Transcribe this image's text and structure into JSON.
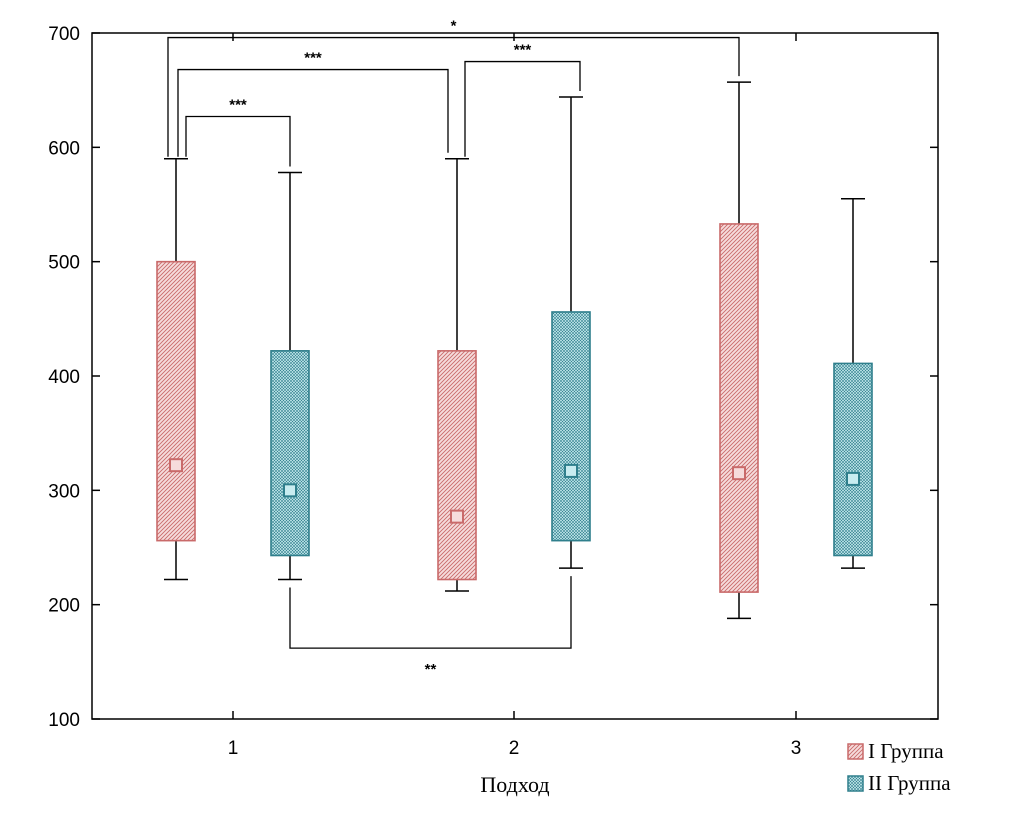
{
  "chart_data": {
    "type": "box",
    "title": "",
    "xlabel": "Подход",
    "ylabel": "",
    "ylim": [
      100,
      700
    ],
    "y_ticks": [
      100,
      200,
      300,
      400,
      500,
      600,
      700
    ],
    "categories": [
      "1",
      "2",
      "3"
    ],
    "series": [
      {
        "name": "I Группа",
        "key": "g1",
        "color": "#c96a6a",
        "fill": "#f6dcdc",
        "boxes": [
          {
            "category": "1",
            "min": 222,
            "q1": 256,
            "median": 322,
            "q3": 500,
            "max": 590
          },
          {
            "category": "2",
            "min": 212,
            "q1": 222,
            "median": 277,
            "q3": 422,
            "max": 590
          },
          {
            "category": "3",
            "min": 188,
            "q1": 211,
            "median": 315,
            "q3": 533,
            "max": 657
          }
        ]
      },
      {
        "name": "II Группа",
        "key": "g2",
        "color": "#2f7f8c",
        "fill": "#c8ecf0",
        "boxes": [
          {
            "category": "1",
            "min": 222,
            "q1": 243,
            "median": 300,
            "q3": 422,
            "max": 578
          },
          {
            "category": "2",
            "min": 232,
            "q1": 256,
            "median": 317,
            "q3": 456,
            "max": 644
          },
          {
            "category": "3",
            "min": 232,
            "q1": 243,
            "median": 310,
            "q3": 411,
            "max": 555
          }
        ]
      }
    ],
    "significance": [
      {
        "from": [
          0,
          0
        ],
        "to": [
          0,
          1
        ],
        "level": 627,
        "label": "***"
      },
      {
        "from": [
          0,
          0
        ],
        "to": [
          1,
          0
        ],
        "level": 668,
        "label": "***"
      },
      {
        "from": [
          1,
          0
        ],
        "to": [
          1,
          1
        ],
        "level": 675,
        "label": "***"
      },
      {
        "from": [
          0,
          0
        ],
        "to": [
          2,
          0
        ],
        "level": 696,
        "label": "*"
      },
      {
        "from": [
          0,
          1
        ],
        "to": [
          1,
          1
        ],
        "level": 162,
        "label": "**"
      }
    ]
  }
}
